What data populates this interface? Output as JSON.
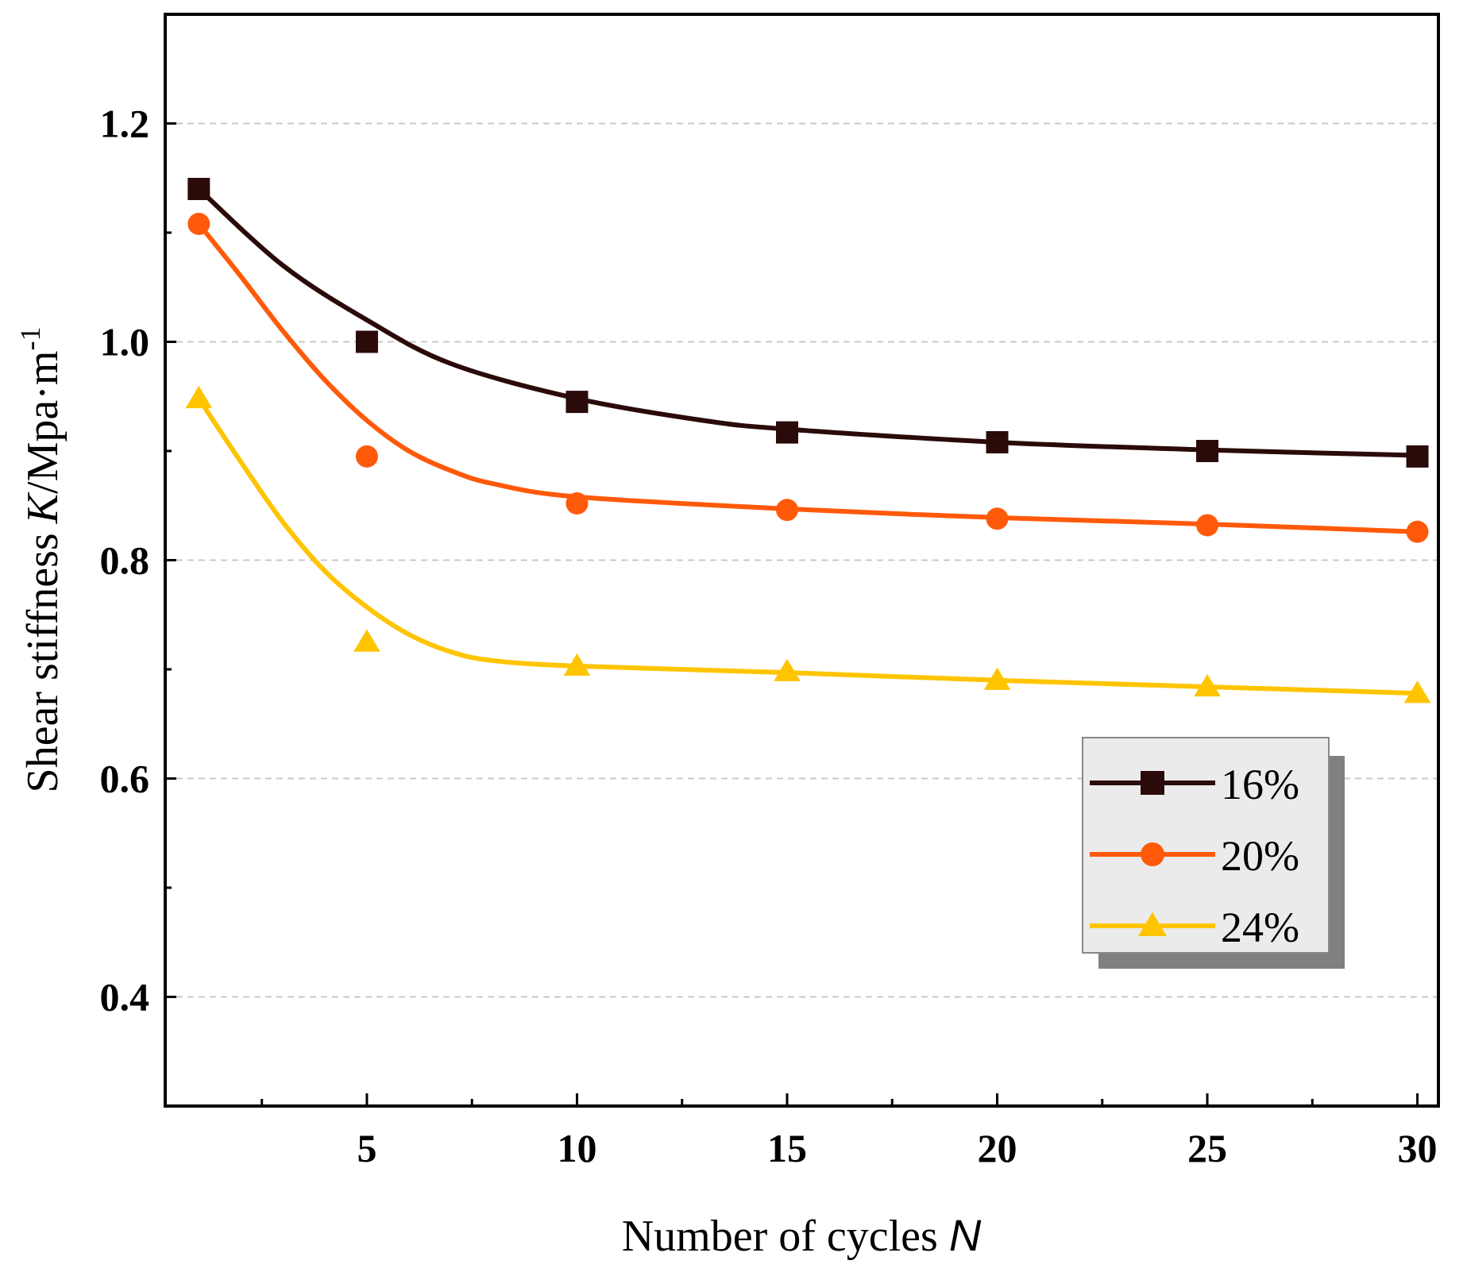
{
  "chart_data": {
    "type": "line",
    "title": "",
    "xlabel": "Number of cycles",
    "xlabel_var": "N",
    "ylabel": "Shear stiffness",
    "ylabel_var": "K",
    "ylabel_unit": "/Mpa·m",
    "ylabel_sup": "-1",
    "xlim": [
      0.2,
      30.5
    ],
    "ylim": [
      0.3,
      1.3
    ],
    "xticks": [
      5,
      10,
      15,
      20,
      25,
      30
    ],
    "xtick_labels": [
      "5",
      "10",
      "15",
      "20",
      "25",
      "30"
    ],
    "yticks": [
      0.4,
      0.6,
      0.8,
      1.0,
      1.2
    ],
    "ytick_labels": [
      "0.4",
      "0.6",
      "0.8",
      "1.0",
      "1.2"
    ],
    "grid": "horizontal dashed",
    "legend_position": "right",
    "x": [
      1,
      5,
      10,
      15,
      20,
      25,
      30
    ],
    "series": [
      {
        "name": "16%",
        "marker": "square",
        "color": "#2b0a0a",
        "values": [
          1.14,
          1.0,
          0.945,
          0.917,
          0.908,
          0.9,
          0.895
        ],
        "fit": [
          [
            1,
            1.14
          ],
          [
            3,
            1.07
          ],
          [
            5,
            1.02
          ],
          [
            7,
            0.98
          ],
          [
            10,
            0.948
          ],
          [
            13,
            0.928
          ],
          [
            15,
            0.92
          ],
          [
            20,
            0.908
          ],
          [
            25,
            0.901
          ],
          [
            30,
            0.896
          ]
        ]
      },
      {
        "name": "20%",
        "marker": "circle",
        "color": "#ff5a0a",
        "values": [
          1.108,
          0.895,
          0.852,
          0.846,
          0.838,
          0.832,
          0.826
        ],
        "fit": [
          [
            1,
            1.108
          ],
          [
            2,
            1.06
          ],
          [
            3,
            1.01
          ],
          [
            4,
            0.965
          ],
          [
            5,
            0.928
          ],
          [
            6,
            0.9
          ],
          [
            7,
            0.882
          ],
          [
            8,
            0.87
          ],
          [
            10,
            0.858
          ],
          [
            15,
            0.847
          ],
          [
            20,
            0.839
          ],
          [
            25,
            0.833
          ],
          [
            30,
            0.826
          ]
        ]
      },
      {
        "name": "24%",
        "marker": "triangle",
        "color": "#ffc400",
        "values": [
          0.948,
          0.725,
          0.703,
          0.698,
          0.69,
          0.684,
          0.678
        ],
        "fit": [
          [
            1,
            0.948
          ],
          [
            2,
            0.89
          ],
          [
            3,
            0.835
          ],
          [
            4,
            0.79
          ],
          [
            5,
            0.757
          ],
          [
            6,
            0.732
          ],
          [
            7,
            0.716
          ],
          [
            8,
            0.708
          ],
          [
            10,
            0.703
          ],
          [
            15,
            0.697
          ],
          [
            20,
            0.69
          ],
          [
            25,
            0.684
          ],
          [
            30,
            0.678
          ]
        ]
      }
    ]
  }
}
